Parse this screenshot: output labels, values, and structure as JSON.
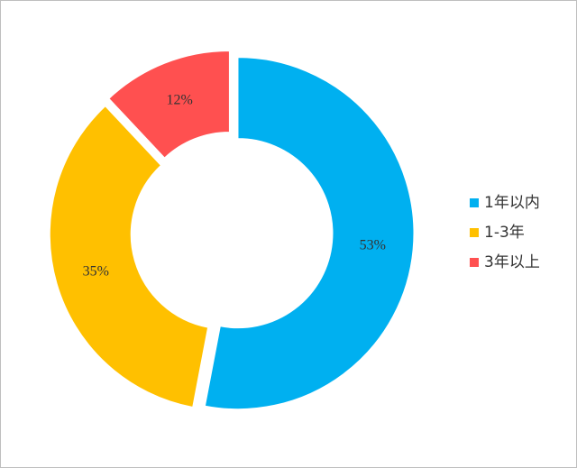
{
  "chart_data": {
    "type": "pie",
    "categories": [
      "1年以内",
      "1-3年",
      "3年以上"
    ],
    "values": [
      53,
      35,
      12
    ],
    "value_labels": [
      "53%",
      "35%",
      "12%"
    ],
    "colors": [
      "#00b0f0",
      "#ffc000",
      "#ff5050"
    ],
    "hole": true,
    "legend": "right"
  }
}
